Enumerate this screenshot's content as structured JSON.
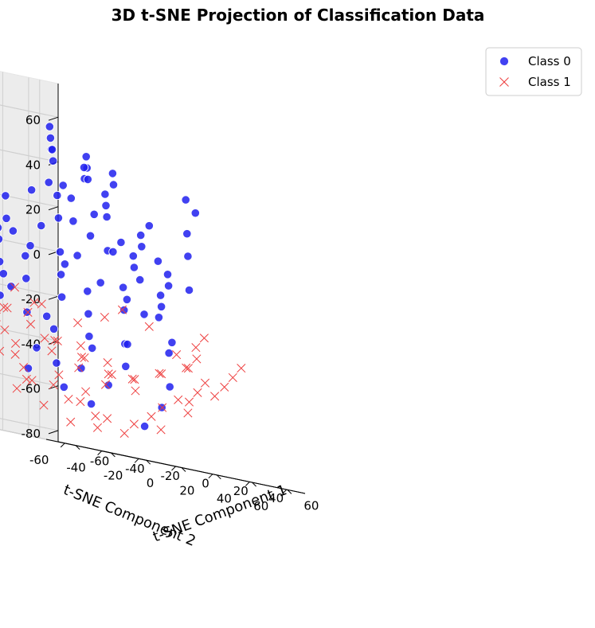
{
  "chart_data": {
    "type": "scatter",
    "title": "3D t-SNE Projection of Classification Data",
    "xlabel": "t-SNE Component 1",
    "ylabel": "t-SNE Component 2",
    "zlabel": "",
    "xlim": [
      -70,
      70
    ],
    "ylim": [
      -70,
      70
    ],
    "zlim": [
      -85,
      75
    ],
    "x_ticks": [
      -60,
      -40,
      -20,
      0,
      20,
      40,
      60
    ],
    "y_ticks": [
      -60,
      -40,
      -20,
      0,
      20,
      40,
      60
    ],
    "z_ticks": [
      -80,
      -60,
      -40,
      -20,
      0,
      20,
      40,
      60
    ],
    "grid": true,
    "legend_position": "top-right",
    "view": {
      "elev": 20,
      "azim": 45
    },
    "series": [
      {
        "name": "Class 0",
        "marker": "circle",
        "color": "#2020ee",
        "points": [
          [
            -30,
            -40,
            55
          ],
          [
            -20,
            -45,
            50
          ],
          [
            -45,
            -30,
            40
          ],
          [
            -10,
            -50,
            60
          ],
          [
            -35,
            -25,
            35
          ],
          [
            -25,
            -35,
            25
          ],
          [
            -40,
            -15,
            20
          ],
          [
            -15,
            -40,
            40
          ],
          [
            -50,
            -20,
            10
          ],
          [
            -30,
            -10,
            5
          ],
          [
            -20,
            -25,
            15
          ],
          [
            -5,
            -35,
            30
          ],
          [
            -45,
            -5,
            -5
          ],
          [
            -35,
            5,
            -10
          ],
          [
            -25,
            -5,
            0
          ],
          [
            -15,
            -15,
            5
          ],
          [
            -55,
            -10,
            -20
          ],
          [
            -40,
            10,
            -25
          ],
          [
            -30,
            15,
            -30
          ],
          [
            -20,
            5,
            -15
          ],
          [
            -10,
            -5,
            -5
          ],
          [
            -5,
            -20,
            10
          ],
          [
            5,
            -30,
            20
          ],
          [
            10,
            -40,
            35
          ],
          [
            -50,
            15,
            -40
          ],
          [
            -35,
            25,
            -45
          ],
          [
            -20,
            20,
            -35
          ],
          [
            -5,
            10,
            -20
          ],
          [
            5,
            0,
            -10
          ],
          [
            15,
            -10,
            0
          ],
          [
            20,
            -25,
            10
          ],
          [
            25,
            -35,
            25
          ],
          [
            -45,
            30,
            -55
          ],
          [
            -30,
            35,
            -60
          ],
          [
            -15,
            30,
            -50
          ],
          [
            0,
            20,
            -35
          ],
          [
            10,
            10,
            -25
          ],
          [
            20,
            0,
            -15
          ],
          [
            30,
            -15,
            0
          ],
          [
            35,
            -30,
            15
          ],
          [
            40,
            -40,
            30
          ],
          [
            -25,
            45,
            -65
          ],
          [
            -10,
            40,
            -55
          ],
          [
            5,
            35,
            -45
          ],
          [
            15,
            25,
            -35
          ],
          [
            25,
            15,
            -20
          ],
          [
            35,
            5,
            -10
          ],
          [
            45,
            -10,
            5
          ],
          [
            50,
            -25,
            20
          ],
          [
            55,
            -35,
            35
          ],
          [
            0,
            50,
            -70
          ],
          [
            15,
            45,
            -60
          ],
          [
            30,
            35,
            -50
          ],
          [
            40,
            25,
            -35
          ],
          [
            50,
            10,
            -20
          ],
          [
            55,
            -5,
            -5
          ],
          [
            60,
            -20,
            10
          ],
          [
            10,
            -10,
            45
          ],
          [
            20,
            -20,
            50
          ],
          [
            30,
            -30,
            55
          ],
          [
            -10,
            10,
            40
          ],
          [
            0,
            0,
            45
          ],
          [
            15,
            5,
            35
          ],
          [
            25,
            -5,
            40
          ],
          [
            35,
            -15,
            45
          ],
          [
            -20,
            25,
            30
          ],
          [
            -5,
            15,
            25
          ],
          [
            10,
            20,
            20
          ],
          [
            20,
            10,
            25
          ],
          [
            30,
            0,
            30
          ],
          [
            40,
            -5,
            35
          ],
          [
            50,
            -15,
            40
          ],
          [
            -30,
            40,
            15
          ],
          [
            -15,
            35,
            10
          ],
          [
            0,
            30,
            5
          ],
          [
            15,
            30,
            0
          ],
          [
            25,
            20,
            5
          ],
          [
            35,
            15,
            10
          ],
          [
            45,
            5,
            15
          ],
          [
            55,
            0,
            20
          ],
          [
            -40,
            45,
            -5
          ],
          [
            -25,
            50,
            -10
          ],
          [
            -10,
            50,
            -15
          ],
          [
            5,
            45,
            -20
          ],
          [
            20,
            40,
            -15
          ],
          [
            30,
            30,
            -10
          ],
          [
            45,
            20,
            -5
          ],
          [
            55,
            10,
            0
          ],
          [
            60,
            0,
            5
          ],
          [
            -55,
            -30,
            45
          ],
          [
            -60,
            -15,
            30
          ],
          [
            -50,
            -45,
            60
          ],
          [
            -35,
            -50,
            55
          ],
          [
            -40,
            -40,
            65
          ],
          [
            -60,
            0,
            0
          ],
          [
            -55,
            20,
            -30
          ],
          [
            -45,
            40,
            -30
          ],
          [
            10,
            -50,
            15
          ],
          [
            25,
            -45,
            5
          ],
          [
            40,
            -50,
            0
          ],
          [
            -5,
            -55,
            50
          ],
          [
            5,
            -60,
            45
          ],
          [
            -25,
            -55,
            45
          ],
          [
            50,
            -45,
            25
          ],
          [
            60,
            -40,
            40
          ],
          [
            -65,
            -5,
            15
          ],
          [
            -60,
            10,
            -5
          ],
          [
            0,
            -45,
            -5
          ],
          [
            15,
            -55,
            -10
          ],
          [
            30,
            -55,
            -15
          ],
          [
            45,
            30,
            20
          ],
          [
            55,
            25,
            30
          ],
          [
            60,
            15,
            35
          ],
          [
            35,
            40,
            10
          ],
          [
            20,
            55,
            -5
          ],
          [
            5,
            60,
            -30
          ],
          [
            -15,
            55,
            -35
          ],
          [
            -35,
            55,
            -40
          ],
          [
            -50,
            50,
            -50
          ],
          [
            -60,
            35,
            -20
          ]
        ]
      },
      {
        "name": "Class 1",
        "marker": "x",
        "color": "#ee4040",
        "points": [
          [
            -60,
            -30,
            10
          ],
          [
            -50,
            -40,
            25
          ],
          [
            -55,
            -20,
            -5
          ],
          [
            -45,
            -35,
            5
          ],
          [
            -40,
            -45,
            15
          ],
          [
            -35,
            -30,
            -10
          ],
          [
            -30,
            -40,
            -5
          ],
          [
            -25,
            -20,
            -25
          ],
          [
            -20,
            -35,
            -15
          ],
          [
            -15,
            -25,
            -35
          ],
          [
            -10,
            -40,
            -20
          ],
          [
            -5,
            -30,
            -40
          ],
          [
            0,
            -20,
            -50
          ],
          [
            5,
            -35,
            -35
          ],
          [
            10,
            -25,
            -55
          ],
          [
            15,
            -40,
            -40
          ],
          [
            20,
            -30,
            -60
          ],
          [
            25,
            -15,
            -65
          ],
          [
            30,
            -25,
            -55
          ],
          [
            35,
            -10,
            -70
          ],
          [
            40,
            -20,
            -60
          ],
          [
            -50,
            -10,
            -30
          ],
          [
            -45,
            0,
            -40
          ],
          [
            -40,
            -15,
            -45
          ],
          [
            -35,
            5,
            -50
          ],
          [
            -30,
            -5,
            -55
          ],
          [
            -25,
            10,
            -60
          ],
          [
            -20,
            0,
            -65
          ],
          [
            -15,
            15,
            -60
          ],
          [
            -10,
            5,
            -70
          ],
          [
            -5,
            20,
            -65
          ],
          [
            0,
            10,
            -75
          ],
          [
            5,
            25,
            -70
          ],
          [
            10,
            15,
            -75
          ],
          [
            15,
            30,
            -70
          ],
          [
            20,
            20,
            -75
          ],
          [
            25,
            35,
            -70
          ],
          [
            30,
            25,
            -65
          ],
          [
            35,
            40,
            -60
          ],
          [
            40,
            30,
            -55
          ],
          [
            45,
            45,
            -50
          ],
          [
            50,
            35,
            -45
          ],
          [
            55,
            20,
            -40
          ],
          [
            60,
            10,
            -35
          ],
          [
            -55,
            -50,
            40
          ],
          [
            -45,
            -55,
            30
          ],
          [
            -35,
            -60,
            20
          ],
          [
            -25,
            -50,
            10
          ],
          [
            -15,
            -55,
            0
          ],
          [
            -5,
            -50,
            -10
          ],
          [
            5,
            -55,
            -20
          ],
          [
            15,
            -60,
            -25
          ],
          [
            25,
            -50,
            -30
          ],
          [
            35,
            -45,
            -35
          ],
          [
            45,
            -40,
            -40
          ],
          [
            55,
            -35,
            -45
          ],
          [
            60,
            -25,
            -50
          ],
          [
            -60,
            -5,
            -15
          ],
          [
            -50,
            15,
            -20
          ],
          [
            -40,
            25,
            -30
          ],
          [
            -30,
            30,
            -40
          ],
          [
            -20,
            35,
            -45
          ],
          [
            -10,
            40,
            -50
          ],
          [
            0,
            45,
            -55
          ],
          [
            10,
            50,
            -60
          ],
          [
            20,
            55,
            -55
          ],
          [
            30,
            50,
            -50
          ],
          [
            40,
            55,
            -45
          ],
          [
            50,
            50,
            -40
          ],
          [
            60,
            45,
            -35
          ],
          [
            -45,
            -25,
            -15
          ],
          [
            -35,
            -15,
            -20
          ],
          [
            -25,
            -45,
            -30
          ],
          [
            -15,
            -10,
            -30
          ],
          [
            -5,
            -15,
            -45
          ],
          [
            5,
            -5,
            -45
          ],
          [
            15,
            0,
            -50
          ],
          [
            25,
            5,
            -55
          ],
          [
            35,
            10,
            -50
          ],
          [
            45,
            15,
            -45
          ],
          [
            -20,
            15,
            -40
          ],
          [
            -10,
            25,
            -40
          ],
          [
            0,
            30,
            -45
          ],
          [
            10,
            35,
            -50
          ],
          [
            20,
            40,
            -45
          ],
          [
            30,
            45,
            -40
          ],
          [
            40,
            40,
            -35
          ],
          [
            50,
            30,
            -30
          ],
          [
            60,
            25,
            -25
          ],
          [
            -60,
            -45,
            30
          ],
          [
            -55,
            -55,
            50
          ],
          [
            -40,
            -60,
            45
          ],
          [
            -30,
            -55,
            35
          ],
          [
            55,
            0,
            -25
          ],
          [
            45,
            -5,
            -20
          ],
          [
            35,
            -5,
            -25
          ],
          [
            25,
            -10,
            -30
          ],
          [
            15,
            -20,
            -25
          ],
          [
            5,
            -25,
            -20
          ],
          [
            -5,
            -5,
            -25
          ]
        ]
      }
    ]
  }
}
